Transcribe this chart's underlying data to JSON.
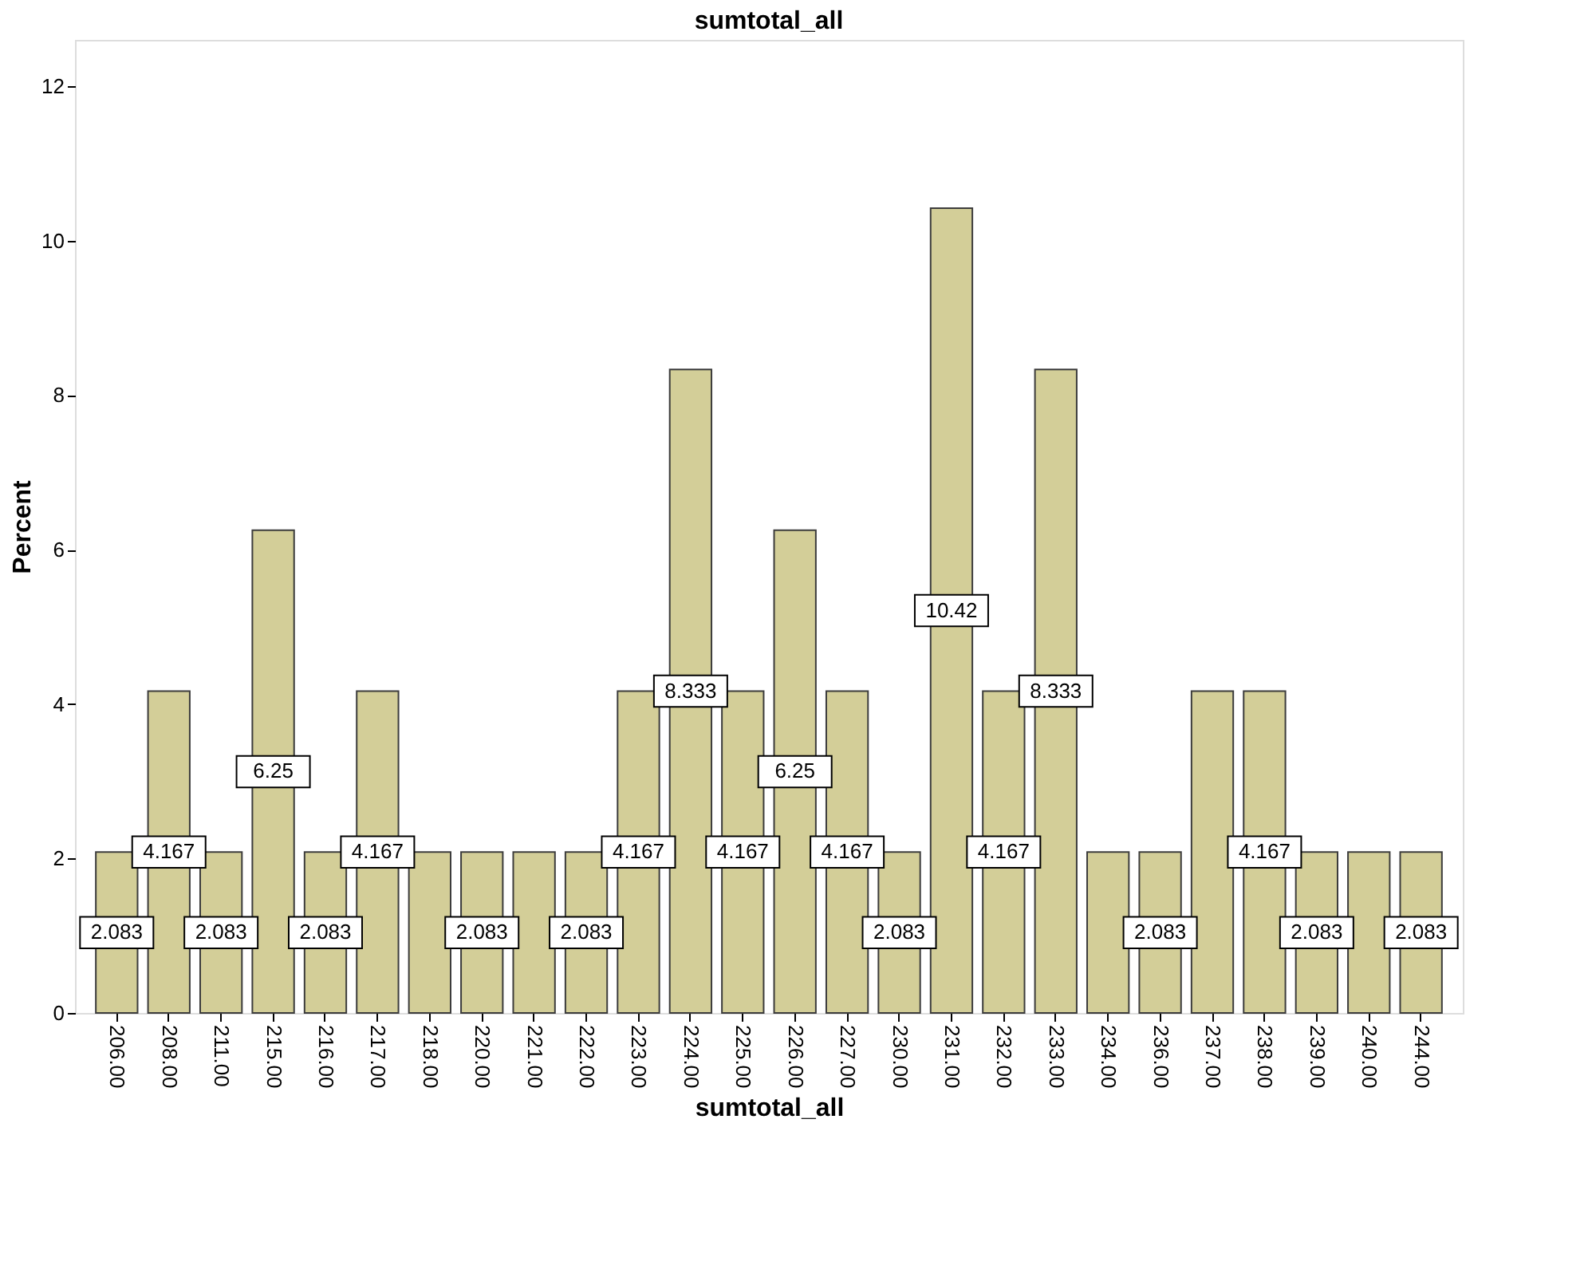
{
  "chart_data": {
    "type": "bar",
    "title": "sumtotal_all",
    "xlabel": "sumtotal_all",
    "ylabel": "Percent",
    "categories": [
      "206.00",
      "208.00",
      "211.00",
      "215.00",
      "216.00",
      "217.00",
      "218.00",
      "220.00",
      "221.00",
      "222.00",
      "223.00",
      "224.00",
      "225.00",
      "226.00",
      "227.00",
      "230.00",
      "231.00",
      "232.00",
      "233.00",
      "234.00",
      "236.00",
      "237.00",
      "238.00",
      "239.00",
      "240.00",
      "244.00"
    ],
    "values": [
      2.083,
      4.167,
      2.083,
      6.25,
      2.083,
      4.167,
      2.083,
      2.083,
      2.083,
      2.083,
      4.167,
      8.333,
      4.167,
      6.25,
      4.167,
      2.083,
      10.42,
      4.167,
      8.333,
      2.083,
      2.083,
      4.167,
      4.167,
      2.083,
      2.083,
      2.083
    ],
    "value_labels": [
      "2.083",
      "4.167",
      "2.083",
      "6.25",
      "2.083",
      "4.167",
      null,
      "2.083",
      null,
      "2.083",
      "4.167",
      "8.333",
      "4.167",
      "6.25",
      "4.167",
      "2.083",
      "10.42",
      "4.167",
      "8.333",
      null,
      "2.083",
      null,
      "4.167",
      "2.083",
      null,
      "2.083"
    ],
    "color": "#d3ce98",
    "ylim": [
      0,
      12.6
    ],
    "yticks": [
      0,
      2,
      4,
      6,
      8,
      10,
      12
    ],
    "grid": false
  }
}
